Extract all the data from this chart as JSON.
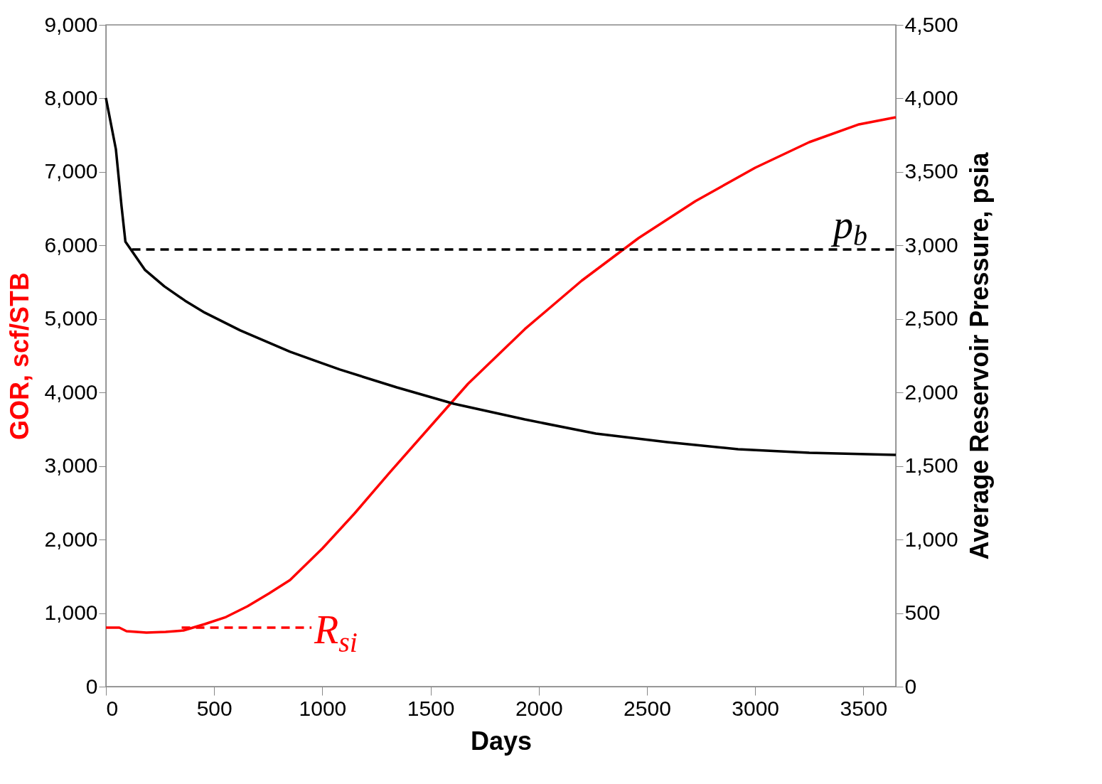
{
  "chart_data": {
    "type": "line",
    "xlabel": "Days",
    "ylabel": "GOR, scf/STB",
    "y2label": "Average Reservoir Pressure, psia",
    "xlim": [
      0,
      3650
    ],
    "xticks": [
      0,
      500,
      1000,
      1500,
      2000,
      2500,
      3000,
      3500
    ],
    "ylim": [
      0,
      9000
    ],
    "yticks": [
      {
        "value": 0,
        "label": "0"
      },
      {
        "value": 1000,
        "label": "1,000"
      },
      {
        "value": 2000,
        "label": "2,000"
      },
      {
        "value": 3000,
        "label": "3,000"
      },
      {
        "value": 4000,
        "label": "4,000"
      },
      {
        "value": 5000,
        "label": "5,000"
      },
      {
        "value": 6000,
        "label": "6,000"
      },
      {
        "value": 7000,
        "label": "7,000"
      },
      {
        "value": 8000,
        "label": "8,000"
      },
      {
        "value": 9000,
        "label": "9,000"
      }
    ],
    "y2lim": [
      0,
      4500
    ],
    "y2ticks": [
      {
        "value": 0,
        "label": "0"
      },
      {
        "value": 500,
        "label": "500"
      },
      {
        "value": 1000,
        "label": "1,000"
      },
      {
        "value": 1500,
        "label": "1,500"
      },
      {
        "value": 2000,
        "label": "2,000"
      },
      {
        "value": 2500,
        "label": "2,500"
      },
      {
        "value": 3000,
        "label": "3,000"
      },
      {
        "value": 3500,
        "label": "3,500"
      },
      {
        "value": 4000,
        "label": "4,000"
      },
      {
        "value": 4500,
        "label": "4,500"
      }
    ],
    "grid": false,
    "marker": "none",
    "series": [
      {
        "color": "#ff0000",
        "axis": "y",
        "line_style": "solid",
        "x": [
          0,
          62,
          95,
          187,
          276,
          358,
          457,
          555,
          654,
          753,
          851,
          999,
          1147,
          1311,
          1499,
          1673,
          1936,
          2198,
          2461,
          2724,
          3000,
          3250,
          3480,
          3650
        ],
        "values": [
          802,
          802,
          754,
          735,
          744,
          764,
          851,
          947,
          1092,
          1266,
          1450,
          1875,
          2349,
          2910,
          3538,
          4118,
          4863,
          5520,
          6100,
          6603,
          7057,
          7405,
          7647,
          7744
        ]
      },
      {
        "color": "#000000",
        "axis": "y2",
        "line_style": "solid",
        "x": [
          0,
          46,
          72,
          90,
          181,
          270,
          365,
          457,
          621,
          851,
          1081,
          1344,
          1607,
          1935,
          2264,
          2593,
          2921,
          3250,
          3650
        ],
        "values": [
          4003,
          3654,
          3268,
          3026,
          2833,
          2722,
          2625,
          2543,
          2422,
          2277,
          2156,
          2035,
          1924,
          1817,
          1721,
          1663,
          1614,
          1590,
          1576
        ]
      },
      {
        "name": "p$_{b}$",
        "color": "#000000",
        "axis": "y2",
        "line_style": "dashed",
        "x": [
          120,
          3650
        ],
        "values": [
          2973,
          2973
        ]
      },
      {
        "name": "R$_{si}$",
        "color": "#ff0000",
        "axis": "y",
        "line_style": "dashed",
        "x": [
          350,
          950
        ],
        "values": [
          802,
          802
        ]
      }
    ]
  }
}
